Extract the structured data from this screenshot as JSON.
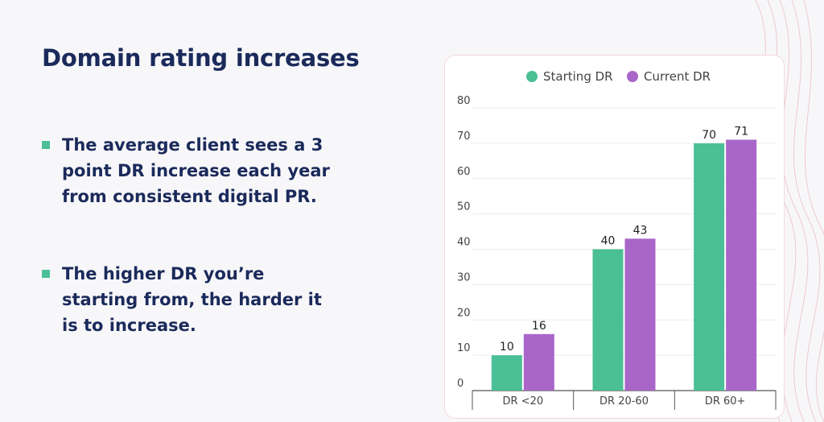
{
  "slide": {
    "title": "Domain rating increases",
    "bullets": [
      "The average client sees a 3 point DR increase each year from consistent digital PR.",
      "The higher DR you’re starting from, the harder it is to increase."
    ]
  },
  "colors": {
    "starting": "#4bbf96",
    "current": "#a966c8",
    "title": "#1b2a5b",
    "bullet_marker": "#4bbf96"
  },
  "chart_data": {
    "type": "bar",
    "title": "",
    "xlabel": "",
    "ylabel": "",
    "categories": [
      "DR <20",
      "DR 20-60",
      "DR 60+"
    ],
    "series": [
      {
        "name": "Starting DR",
        "values": [
          10,
          40,
          70
        ]
      },
      {
        "name": "Current DR",
        "values": [
          16,
          43,
          71
        ]
      }
    ],
    "ylim": [
      0,
      80
    ],
    "yticks": [
      0,
      10,
      20,
      30,
      40,
      50,
      60,
      70,
      80
    ],
    "legend": "top-center",
    "grid": true
  }
}
